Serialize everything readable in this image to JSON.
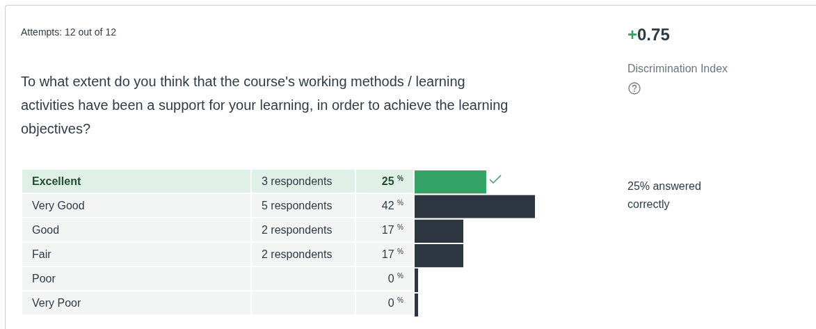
{
  "chart_data": {
    "type": "bar",
    "orientation": "horizontal",
    "title": "To what extent do you think that the course's working methods / learning activities have been a support for your learning, in order to achieve the learning objectives?",
    "categories": [
      "Excellent",
      "Very Good",
      "Good",
      "Fair",
      "Poor",
      "Very Poor"
    ],
    "values": [
      25,
      42,
      17,
      17,
      0,
      0
    ],
    "value_labels": [
      "25 $^{%}$",
      "42 $^{%}$",
      "17 $^{%}$",
      "17 $^{%}$",
      "0 $^{%}$",
      "0 $^{%}$"
    ],
    "colors": [
      "#35a266",
      "#2d3540",
      "#2d3540",
      "#2d3540",
      "#2d3540",
      "#2d3540"
    ],
    "annotations": [
      "3 respondents",
      "5 respondents",
      "2 respondents",
      "2 respondents",
      "Attempts: 12 out of 12",
      "+0.75",
      "Discrimination Index",
      "25% answered correctly"
    ],
    "legend": false
  }
}
